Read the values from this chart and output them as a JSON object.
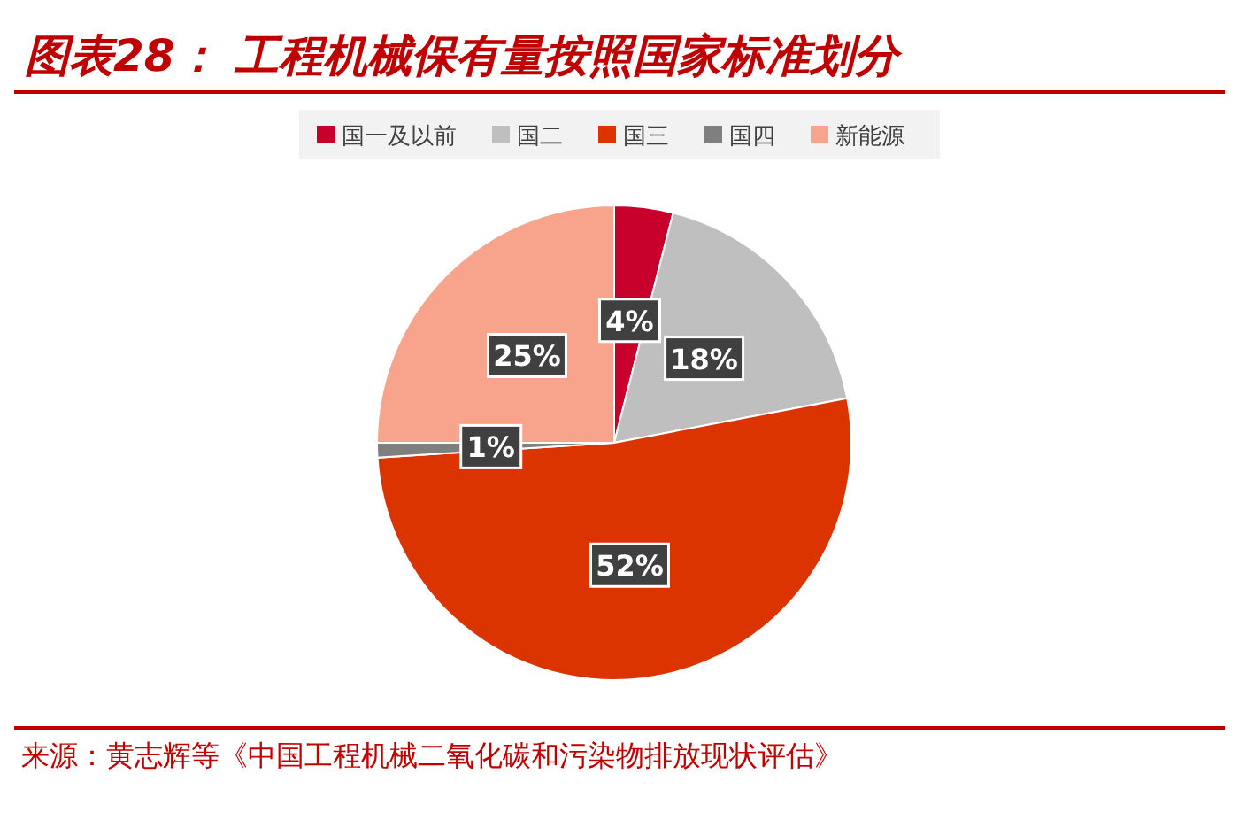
{
  "chart_data": {
    "type": "pie",
    "title": "图表28： 工程机械保有量按照国家标准划分",
    "categories": [
      "国一及以前",
      "国二",
      "国三",
      "国四",
      "新能源"
    ],
    "values": [
      4,
      18,
      52,
      1,
      25
    ],
    "colors": [
      "#c8002c",
      "#bfbfbf",
      "#dc3400",
      "#7f7f7f",
      "#f8a48c"
    ],
    "value_labels": [
      "4%",
      "18%",
      "52%",
      "1%",
      "25%"
    ],
    "legend": "top",
    "annotations": [
      "来源：黄志辉等《中国工程机械二氧化碳和污染物排放现状评估》"
    ]
  }
}
